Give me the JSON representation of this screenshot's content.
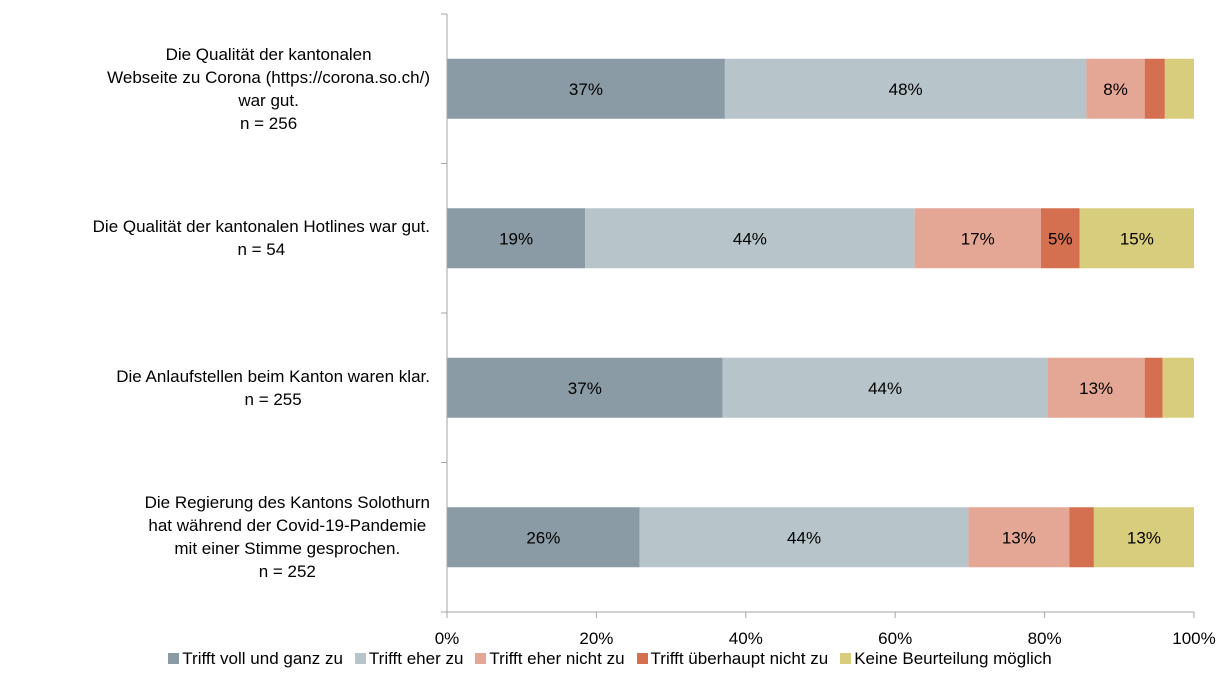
{
  "chart_data": {
    "type": "bar",
    "orientation": "horizontal",
    "stacked": true,
    "xlim": [
      0,
      100
    ],
    "x_ticks": [
      "0%",
      "20%",
      "40%",
      "60%",
      "80%",
      "100%"
    ],
    "categories": [
      {
        "lines": [
          "Die Qualität der kantonalen",
          "Webseite zu Corona (https://corona.so.ch/)",
          "war gut.",
          "n = 256"
        ]
      },
      {
        "lines": [
          "Die Qualität der kantonalen Hotlines war gut.",
          "n = 54"
        ]
      },
      {
        "lines": [
          "Die Anlaufstellen beim Kanton waren klar.",
          "n = 255"
        ]
      },
      {
        "lines": [
          "Die Regierung des Kantons Solothurn",
          "hat während der Covid-19-Pandemie",
          "mit einer Stimme gesprochen.",
          "n = 252"
        ]
      }
    ],
    "series": [
      {
        "name": "Trifft voll und ganz zu",
        "color": "#8a9ba5",
        "values": [
          37.2,
          18.5,
          36.9,
          25.8
        ],
        "labels": [
          "37%",
          "19%",
          "37%",
          "26%"
        ]
      },
      {
        "name": "Trifft eher zu",
        "color": "#b7c4c9",
        "values": [
          48.4,
          44.1,
          43.5,
          44.0
        ],
        "labels": [
          "48%",
          "44%",
          "44%",
          "44%"
        ]
      },
      {
        "name": "Trifft eher nicht zu",
        "color": "#e4a795",
        "values": [
          7.8,
          16.9,
          13.0,
          13.5
        ],
        "labels": [
          "8%",
          "17%",
          "13%",
          "13%"
        ]
      },
      {
        "name": "Trifft überhaupt nicht zu",
        "color": "#d4704f",
        "values": [
          2.7,
          5.2,
          2.4,
          3.3
        ],
        "labels": [
          "",
          "5%",
          "",
          ""
        ]
      },
      {
        "name": "Keine Beurteilung möglich",
        "color": "#d8cd7d",
        "values": [
          3.9,
          15.3,
          4.2,
          13.4
        ],
        "labels": [
          "",
          "15%",
          "",
          "13%"
        ]
      }
    ],
    "legend_position": "bottom",
    "grid": false
  }
}
